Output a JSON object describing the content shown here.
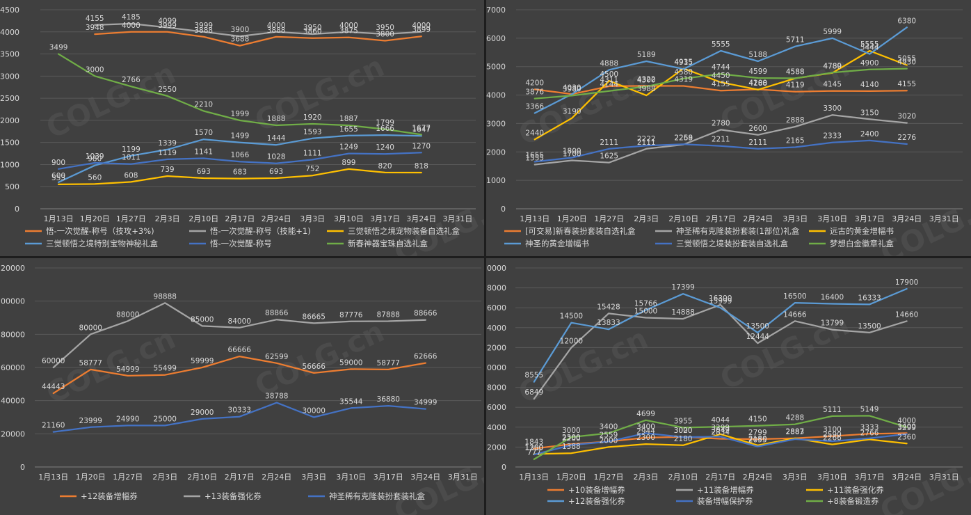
{
  "watermark_text": "COLG.cn",
  "chart_data": [
    {
      "type": "line",
      "categories": [
        "1月13日",
        "1月20日",
        "1月27日",
        "2月3日",
        "2月10日",
        "2月17日",
        "2月24日",
        "3月3日",
        "3月10日",
        "3月17日",
        "3月24日",
        "3月31日"
      ],
      "ylim": [
        0,
        4500
      ],
      "yticks": [
        0,
        500,
        1000,
        1500,
        2000,
        2500,
        3000,
        3500,
        4000,
        4500
      ],
      "grid": true,
      "legend_position": "bottom",
      "series": [
        {
          "name": "悟-一次觉醒-称号（技攻+3%)",
          "color": "#ed7d31",
          "values": [
            null,
            3948,
            4000,
            3999,
            3888,
            3688,
            3888,
            3860,
            3875,
            3800,
            3899,
            null
          ],
          "labels": [
            "",
            "3948",
            "4000",
            "3999",
            "3888",
            "3688",
            "3888",
            "3860",
            "3875",
            "3800",
            "3899",
            ""
          ]
        },
        {
          "name": "悟-一次觉醒-称号（技能+1)",
          "color": "#a5a5a5",
          "values": [
            null,
            4155,
            4185,
            4099,
            3999,
            3900,
            4000,
            3950,
            4000,
            3950,
            4000,
            null
          ],
          "labels": [
            "",
            "4155",
            "4185",
            "4099",
            "3999",
            "3900",
            "4000",
            "3950",
            "4000",
            "3950",
            "4000",
            ""
          ]
        },
        {
          "name": "三觉顿悟之境宠物装备自选礼盒",
          "color": "#ffc000",
          "values": [
            553,
            560,
            608,
            739,
            693,
            683,
            693,
            752,
            899,
            820,
            818,
            null
          ],
          "labels": [
            "553",
            "560",
            "608",
            "739",
            "693",
            "683",
            "693",
            "752",
            "899",
            "820",
            "818",
            ""
          ]
        },
        {
          "name": "三觉顿悟之境特别宝物神秘礼盒",
          "color": "#5b9bd5",
          "values": [
            600,
            980,
            1199,
            1339,
            1570,
            1499,
            1444,
            1593,
            1655,
            1666,
            1647,
            null
          ],
          "labels": [
            "600",
            "980",
            "1199",
            "1339",
            "1570",
            "1499",
            "1444",
            "1593",
            "1655",
            "1666",
            "1647",
            ""
          ]
        },
        {
          "name": "悟-一次觉醒-称号",
          "color": "#4472c4",
          "values": [
            900,
            1039,
            1011,
            1119,
            1141,
            1066,
            1028,
            1111,
            1249,
            1240,
            1270,
            null
          ],
          "labels": [
            "900",
            "1039",
            "1011",
            "1119",
            "1141",
            "1066",
            "1028",
            "1111",
            "1249",
            "1240",
            "1270",
            ""
          ]
        },
        {
          "name": "新春神器宝珠自选礼盒",
          "color": "#70ad47",
          "values": [
            3499,
            3000,
            2766,
            2550,
            2210,
            1999,
            1888,
            1920,
            1887,
            1799,
            1677,
            null
          ],
          "labels": [
            "3499",
            "3000",
            "2766",
            "2550",
            "2210",
            "1999",
            "1888",
            "1920",
            "1887",
            "1799",
            "1677",
            ""
          ]
        }
      ]
    },
    {
      "type": "line",
      "categories": [
        "1月13日",
        "1月20日",
        "1月27日",
        "2月3日",
        "2月10日",
        "2月17日",
        "2月24日",
        "3月3日",
        "3月10日",
        "3月17日",
        "3月24日",
        "3月31日"
      ],
      "ylim": [
        0,
        7000
      ],
      "yticks": [
        0,
        1000,
        2000,
        3000,
        4000,
        5000,
        6000,
        7000
      ],
      "grid": true,
      "legend_position": "bottom",
      "series": [
        {
          "name": "[可交易]新春装扮套装自选礼盒",
          "color": "#ed7d31",
          "values": [
            4200,
            4030,
            4311,
            4322,
            4319,
            4155,
            4200,
            4119,
            4145,
            4140,
            4155,
            null
          ],
          "labels": [
            "4200",
            "4030",
            "4311",
            "4322",
            "4319",
            "4155",
            "4200",
            "4119",
            "4145",
            "4140",
            "4155",
            ""
          ]
        },
        {
          "name": "神圣稀有克隆装扮套装(1部位)礼盒",
          "color": "#a5a5a5",
          "values": [
            1555,
            1700,
            1625,
            2111,
            2258,
            2780,
            2600,
            2888,
            3300,
            3150,
            3020,
            null
          ],
          "labels": [
            "1555",
            "1700",
            "1625",
            "2111",
            "2258",
            "2780",
            "2600",
            "2888",
            "3300",
            "3150",
            "3020",
            ""
          ]
        },
        {
          "name": "远古的黄金增幅书",
          "color": "#ffc000",
          "values": [
            2440,
            3190,
            4500,
            3988,
            4935,
            4450,
            4188,
            4588,
            4780,
            5555,
            5055,
            null
          ],
          "labels": [
            "2440",
            "3190",
            "4500",
            "3988",
            "4935",
            "4450",
            "4188",
            "4588",
            "4780",
            "5555",
            "5055",
            ""
          ]
        },
        {
          "name": "神圣的黄金增幅书",
          "color": "#5b9bd5",
          "values": [
            3366,
            4030,
            4888,
            5189,
            4915,
            5555,
            5188,
            5711,
            5999,
            5444,
            6380,
            null
          ],
          "labels": [
            "3366",
            "",
            "4888",
            "5189",
            "4915",
            "5555",
            "5188",
            "5711",
            "5999",
            "5444",
            "6380",
            ""
          ]
        },
        {
          "name": "三觉顿悟之境装扮套装自选礼盒",
          "color": "#4472c4",
          "values": [
            1655,
            1800,
            2111,
            2222,
            2269,
            2211,
            2111,
            2165,
            2333,
            2400,
            2276,
            null
          ],
          "labels": [
            "1655",
            "1800",
            "2111",
            "2222",
            "2269",
            "2211",
            "2111",
            "2165",
            "2333",
            "2400",
            "2276",
            ""
          ]
        },
        {
          "name": "梦想白金徽章礼盒",
          "color": "#70ad47",
          "values": [
            3876,
            3980,
            4144,
            4300,
            4580,
            4744,
            4599,
            4588,
            4789,
            4900,
            4930,
            null
          ],
          "labels": [
            "3876",
            "3980",
            "4144",
            "4300",
            "4580",
            "4744",
            "4599",
            "4588",
            "4789",
            "4900",
            "4930",
            ""
          ]
        }
      ]
    },
    {
      "type": "line",
      "categories": [
        "1月13日",
        "1月20日",
        "1月27日",
        "2月3日",
        "2月10日",
        "2月17日",
        "2月24日",
        "3月3日",
        "3月10日",
        "3月17日",
        "3月24日",
        "3月31日"
      ],
      "ylim": [
        0,
        120000
      ],
      "yticks": [
        0,
        20000,
        40000,
        60000,
        80000,
        100000,
        120000
      ],
      "grid": true,
      "legend_position": "bottom",
      "series": [
        {
          "name": "+12装备增幅券",
          "color": "#ed7d31",
          "values": [
            44443,
            58777,
            54999,
            55499,
            59999,
            66666,
            62599,
            56666,
            59000,
            58777,
            62666,
            null
          ],
          "labels": [
            "44443",
            "58777",
            "54999",
            "55499",
            "59999",
            "66666",
            "62599",
            "56666",
            "59000",
            "58777",
            "62666",
            ""
          ]
        },
        {
          "name": "+13装备强化券",
          "color": "#a5a5a5",
          "values": [
            60000,
            80000,
            88000,
            98888,
            85000,
            84000,
            88866,
            86665,
            87776,
            87888,
            88666,
            null
          ],
          "labels": [
            "60000",
            "80000",
            "88000",
            "98888",
            "85000",
            "84000",
            "88866",
            "86665",
            "87776",
            "87888",
            "88666",
            ""
          ]
        },
        {
          "name": "神圣稀有克隆装扮套装礼盒",
          "color": "#4472c4",
          "values": [
            21160,
            23999,
            24990,
            25000,
            29000,
            30333,
            38788,
            30000,
            35544,
            36880,
            34999,
            null
          ],
          "labels": [
            "21160",
            "23999",
            "24990",
            "25000",
            "29000",
            "30333",
            "38788",
            "30000",
            "35544",
            "36880",
            "34999",
            ""
          ]
        }
      ]
    },
    {
      "type": "line",
      "categories": [
        "1月13日",
        "1月20日",
        "1月27日",
        "2月3日",
        "2月10日",
        "2月17日",
        "2月24日",
        "3月3日",
        "3月10日",
        "3月17日",
        "3月24日",
        "3月31日"
      ],
      "ylim": [
        0,
        20000
      ],
      "yticks": [
        0,
        2000,
        4000,
        6000,
        8000,
        10000,
        12000,
        14000,
        16000,
        18000,
        20000
      ],
      "grid": true,
      "legend_position": "bottom",
      "series": [
        {
          "name": "+10装备增幅券",
          "color": "#ed7d31",
          "values": [
            1843,
            2300,
            2559,
            2944,
            3020,
            2834,
            2799,
            2883,
            3100,
            3333,
            3400,
            null
          ],
          "labels": [
            "1843",
            "2300",
            "2559",
            "2944",
            "3020",
            "2834",
            "2799",
            "2883",
            "3100",
            "3333",
            "3400",
            ""
          ]
        },
        {
          "name": "+11装备增幅券",
          "color": "#a5a5a5",
          "values": [
            6849,
            12000,
            15428,
            15000,
            14888,
            16300,
            12444,
            14666,
            13799,
            13500,
            14660,
            null
          ],
          "labels": [
            "6849",
            "12000",
            "15428",
            "15000",
            "14888",
            "16300",
            "12444",
            "14666",
            "13799",
            "13500",
            "14660",
            ""
          ]
        },
        {
          "name": "+11装备强化券",
          "color": "#ffc000",
          "values": [
            1300,
            1388,
            2000,
            2300,
            2180,
            3299,
            2180,
            2887,
            2266,
            2766,
            2360,
            null
          ],
          "labels": [
            "1300",
            "1388",
            "2000",
            "2300",
            "2180",
            "3299",
            "2180",
            "2887",
            "2266",
            "2766",
            "2360",
            ""
          ]
        },
        {
          "name": "+12装备强化券",
          "color": "#5b9bd5",
          "values": [
            8555,
            14500,
            13833,
            15766,
            17399,
            15999,
            13500,
            16500,
            16400,
            16333,
            17900,
            null
          ],
          "labels": [
            "8555",
            "14500",
            "13833",
            "15766",
            "17399",
            "15999",
            "13500",
            "16500",
            "16400",
            "16333",
            "17900",
            ""
          ]
        },
        {
          "name": "装备增幅保护券",
          "color": "#4472c4",
          "values": [
            1250,
            2200,
            2550,
            3400,
            3000,
            3049,
            2055,
            2800,
            2590,
            2888,
            3299,
            null
          ],
          "labels": [
            "1250",
            "2200",
            "",
            "3400",
            "3000",
            "3049",
            "2055",
            "",
            "2590",
            "",
            "3299",
            ""
          ]
        },
        {
          "name": "+8装备锻造券",
          "color": "#70ad47",
          "values": [
            777,
            3000,
            3400,
            4699,
            3955,
            4044,
            4150,
            4288,
            5111,
            5149,
            4000,
            null
          ],
          "labels": [
            "777",
            "3000",
            "3400",
            "4699",
            "3955",
            "4044",
            "4150",
            "4288",
            "5111",
            "5149",
            "4000",
            ""
          ]
        }
      ]
    }
  ]
}
